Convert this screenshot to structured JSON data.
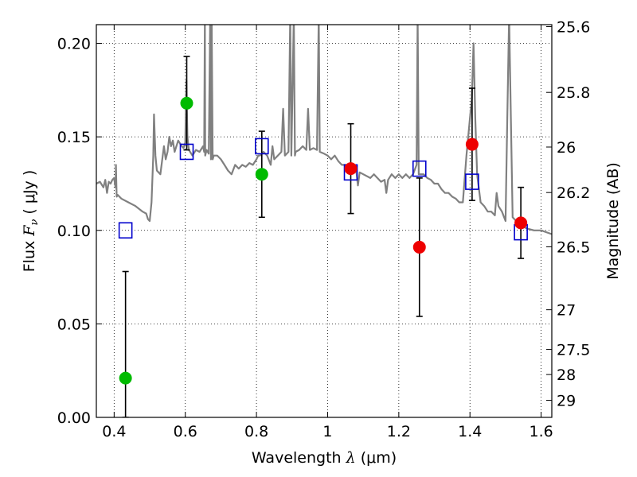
{
  "chart_data": {
    "type": "scatter",
    "title": "",
    "xlabel_prefix": "Wavelength ",
    "xlabel_symbol": "λ",
    "xlabel_units": " (μm)",
    "ylabel_prefix": "Flux  ",
    "ylabel_symbol": "F",
    "ylabel_subscript": "ν",
    "ylabel_units": "  ( μJy )",
    "y2label": "Magnitude (AB)",
    "xlim": [
      0.35,
      1.63
    ],
    "ylim": [
      0.0,
      0.21
    ],
    "grid": true,
    "x_ticks": [
      {
        "value": 0.4,
        "label": "0.4"
      },
      {
        "value": 0.6,
        "label": "0.6"
      },
      {
        "value": 0.8,
        "label": "0.8"
      },
      {
        "value": 1.0,
        "label": "1"
      },
      {
        "value": 1.2,
        "label": "1.2"
      },
      {
        "value": 1.4,
        "label": "1.4"
      },
      {
        "value": 1.6,
        "label": "1.6"
      }
    ],
    "y_ticks": [
      {
        "value": 0.0,
        "label": "0.00"
      },
      {
        "value": 0.05,
        "label": "0.05"
      },
      {
        "value": 0.1,
        "label": "0.10"
      },
      {
        "value": 0.15,
        "label": "0.15"
      },
      {
        "value": 0.2,
        "label": "0.20"
      }
    ],
    "y2_ticks": [
      {
        "value": 25.6,
        "label": "25.6"
      },
      {
        "value": 25.8,
        "label": "25.8"
      },
      {
        "value": 26.0,
        "label": "26"
      },
      {
        "value": 26.2,
        "label": "26.2"
      },
      {
        "value": 26.5,
        "label": "26.5"
      },
      {
        "value": 27.0,
        "label": "27"
      },
      {
        "value": 27.5,
        "label": "27.5"
      },
      {
        "value": 28.0,
        "label": "28"
      },
      {
        "value": 29.0,
        "label": "29"
      }
    ],
    "series": [
      {
        "kind": "model-spectrum",
        "color": "#808080",
        "points": [
          [
            0.35,
            0.125
          ],
          [
            0.36,
            0.126
          ],
          [
            0.37,
            0.123
          ],
          [
            0.375,
            0.127
          ],
          [
            0.38,
            0.12
          ],
          [
            0.385,
            0.126
          ],
          [
            0.39,
            0.125
          ],
          [
            0.395,
            0.127
          ],
          [
            0.4,
            0.128
          ],
          [
            0.404,
            0.123
          ],
          [
            0.405,
            0.135
          ],
          [
            0.407,
            0.118
          ],
          [
            0.41,
            0.119
          ],
          [
            0.42,
            0.117
          ],
          [
            0.44,
            0.115
          ],
          [
            0.46,
            0.113
          ],
          [
            0.48,
            0.11
          ],
          [
            0.49,
            0.109
          ],
          [
            0.495,
            0.106
          ],
          [
            0.5,
            0.105
          ],
          [
            0.505,
            0.115
          ],
          [
            0.51,
            0.14
          ],
          [
            0.512,
            0.162
          ],
          [
            0.516,
            0.14
          ],
          [
            0.52,
            0.132
          ],
          [
            0.53,
            0.13
          ],
          [
            0.54,
            0.145
          ],
          [
            0.545,
            0.138
          ],
          [
            0.55,
            0.142
          ],
          [
            0.555,
            0.15
          ],
          [
            0.56,
            0.145
          ],
          [
            0.565,
            0.148
          ],
          [
            0.57,
            0.142
          ],
          [
            0.58,
            0.148
          ],
          [
            0.59,
            0.145
          ],
          [
            0.595,
            0.144
          ],
          [
            0.6,
            0.147
          ],
          [
            0.603,
            0.18
          ],
          [
            0.606,
            0.15
          ],
          [
            0.61,
            0.143
          ],
          [
            0.62,
            0.14
          ],
          [
            0.63,
            0.143
          ],
          [
            0.64,
            0.142
          ],
          [
            0.65,
            0.145
          ],
          [
            0.653,
            0.142
          ],
          [
            0.655,
            0.215
          ],
          [
            0.656,
            0.14
          ],
          [
            0.66,
            0.143
          ],
          [
            0.666,
            0.141
          ],
          [
            0.67,
            0.215
          ],
          [
            0.672,
            0.138
          ],
          [
            0.674,
            0.215
          ],
          [
            0.677,
            0.138
          ],
          [
            0.68,
            0.14
          ],
          [
            0.69,
            0.14
          ],
          [
            0.7,
            0.138
          ],
          [
            0.71,
            0.135
          ],
          [
            0.72,
            0.132
          ],
          [
            0.73,
            0.13
          ],
          [
            0.74,
            0.135
          ],
          [
            0.75,
            0.133
          ],
          [
            0.76,
            0.135
          ],
          [
            0.77,
            0.134
          ],
          [
            0.78,
            0.136
          ],
          [
            0.79,
            0.135
          ],
          [
            0.8,
            0.138
          ],
          [
            0.805,
            0.14
          ],
          [
            0.81,
            0.14
          ],
          [
            0.82,
            0.142
          ],
          [
            0.83,
            0.14
          ],
          [
            0.84,
            0.135
          ],
          [
            0.845,
            0.145
          ],
          [
            0.85,
            0.138
          ],
          [
            0.86,
            0.14
          ],
          [
            0.87,
            0.142
          ],
          [
            0.875,
            0.165
          ],
          [
            0.88,
            0.14
          ],
          [
            0.89,
            0.142
          ],
          [
            0.895,
            0.215
          ],
          [
            0.898,
            0.14
          ],
          [
            0.905,
            0.215
          ],
          [
            0.908,
            0.14
          ],
          [
            0.91,
            0.142
          ],
          [
            0.92,
            0.143
          ],
          [
            0.93,
            0.145
          ],
          [
            0.94,
            0.143
          ],
          [
            0.945,
            0.165
          ],
          [
            0.95,
            0.143
          ],
          [
            0.96,
            0.144
          ],
          [
            0.97,
            0.143
          ],
          [
            0.975,
            0.215
          ],
          [
            0.978,
            0.142
          ],
          [
            0.99,
            0.141
          ],
          [
            1.0,
            0.14
          ],
          [
            1.01,
            0.138
          ],
          [
            1.02,
            0.14
          ],
          [
            1.03,
            0.137
          ],
          [
            1.04,
            0.135
          ],
          [
            1.05,
            0.135
          ],
          [
            1.06,
            0.133
          ],
          [
            1.07,
            0.134
          ],
          [
            1.08,
            0.133
          ],
          [
            1.085,
            0.124
          ],
          [
            1.09,
            0.131
          ],
          [
            1.1,
            0.13
          ],
          [
            1.12,
            0.128
          ],
          [
            1.13,
            0.13
          ],
          [
            1.14,
            0.128
          ],
          [
            1.15,
            0.126
          ],
          [
            1.16,
            0.127
          ],
          [
            1.165,
            0.12
          ],
          [
            1.17,
            0.127
          ],
          [
            1.18,
            0.13
          ],
          [
            1.19,
            0.128
          ],
          [
            1.2,
            0.13
          ],
          [
            1.21,
            0.128
          ],
          [
            1.22,
            0.13
          ],
          [
            1.23,
            0.128
          ],
          [
            1.24,
            0.13
          ],
          [
            1.25,
            0.135
          ],
          [
            1.253,
            0.215
          ],
          [
            1.256,
            0.13
          ],
          [
            1.27,
            0.13
          ],
          [
            1.28,
            0.128
          ],
          [
            1.29,
            0.127
          ],
          [
            1.3,
            0.125
          ],
          [
            1.31,
            0.125
          ],
          [
            1.32,
            0.122
          ],
          [
            1.33,
            0.12
          ],
          [
            1.34,
            0.12
          ],
          [
            1.35,
            0.118
          ],
          [
            1.36,
            0.117
          ],
          [
            1.37,
            0.115
          ],
          [
            1.38,
            0.115
          ],
          [
            1.39,
            0.14
          ],
          [
            1.4,
            0.16
          ],
          [
            1.405,
            0.17
          ],
          [
            1.41,
            0.2
          ],
          [
            1.415,
            0.16
          ],
          [
            1.42,
            0.13
          ],
          [
            1.43,
            0.115
          ],
          [
            1.44,
            0.113
          ],
          [
            1.45,
            0.11
          ],
          [
            1.46,
            0.11
          ],
          [
            1.47,
            0.108
          ],
          [
            1.475,
            0.12
          ],
          [
            1.48,
            0.113
          ],
          [
            1.49,
            0.11
          ],
          [
            1.5,
            0.105
          ],
          [
            1.505,
            0.16
          ],
          [
            1.51,
            0.215
          ],
          [
            1.515,
            0.16
          ],
          [
            1.52,
            0.107
          ],
          [
            1.53,
            0.105
          ],
          [
            1.54,
            0.104
          ],
          [
            1.55,
            0.102
          ],
          [
            1.56,
            0.101
          ],
          [
            1.58,
            0.1
          ],
          [
            1.6,
            0.1
          ],
          [
            1.63,
            0.098
          ]
        ]
      },
      {
        "kind": "model-photometry",
        "marker": "open-square",
        "color": "#0000cc",
        "x": [
          0.432,
          0.604,
          0.815,
          1.065,
          1.258,
          1.406,
          1.543
        ],
        "y": [
          0.1,
          0.142,
          0.145,
          0.131,
          0.133,
          0.126,
          0.099
        ]
      },
      {
        "kind": "photometry-green",
        "marker": "filled-circle",
        "color": "#00bb00",
        "x": [
          0.432,
          0.604,
          0.815
        ],
        "y": [
          0.021,
          0.168,
          0.13
        ],
        "yerr_low": [
          0.021,
          0.025,
          0.023
        ],
        "yerr_high": [
          0.057,
          0.025,
          0.023
        ]
      },
      {
        "kind": "photometry-red",
        "marker": "filled-circle",
        "color": "#ee0000",
        "x": [
          1.065,
          1.258,
          1.406,
          1.543
        ],
        "y": [
          0.133,
          0.091,
          0.146,
          0.104
        ],
        "yerr_low": [
          0.024,
          0.037,
          0.03,
          0.019
        ],
        "yerr_high": [
          0.024,
          0.037,
          0.03,
          0.019
        ]
      }
    ]
  }
}
